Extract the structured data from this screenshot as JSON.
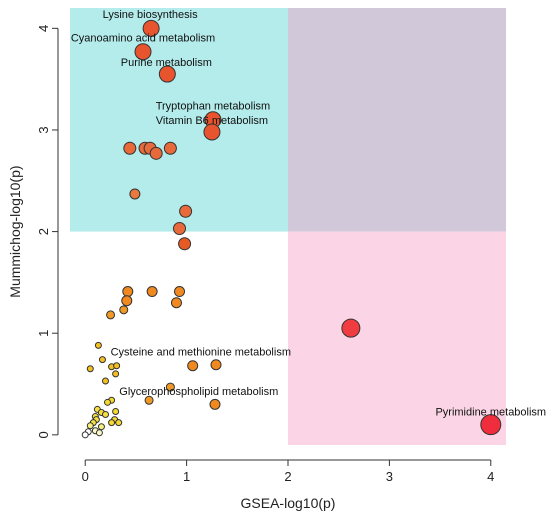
{
  "chart_data": {
    "type": "scatter",
    "title": "",
    "xlabel": "GSEA-log10(p)",
    "ylabel": "Mummichog-log10(p)",
    "xlim": [
      -0.15,
      4.15
    ],
    "ylim": [
      -0.1,
      4.2
    ],
    "xticks": [
      "0",
      "1",
      "2",
      "3",
      "4"
    ],
    "yticks": [
      "0",
      "1",
      "2",
      "3",
      "4"
    ],
    "grid": false,
    "regions": [
      {
        "x": [
          -0.15,
          2
        ],
        "y": [
          2,
          4.2
        ],
        "color": "#b4ebeb"
      },
      {
        "x": [
          2,
          4.15
        ],
        "y": [
          2,
          4.2
        ],
        "color": "#d1c9d9"
      },
      {
        "x": [
          2,
          4.15
        ],
        "y": [
          -0.15,
          2
        ],
        "color": "#fbd5e5"
      }
    ],
    "points": [
      {
        "x": 0.65,
        "y": 4.0,
        "size": 8,
        "color": "#e8542e"
      },
      {
        "x": 0.57,
        "y": 3.77,
        "size": 8,
        "color": "#e8542e"
      },
      {
        "x": 0.81,
        "y": 3.55,
        "size": 8,
        "color": "#e8542e"
      },
      {
        "x": 1.26,
        "y": 3.1,
        "size": 8,
        "color": "#e8542e"
      },
      {
        "x": 1.25,
        "y": 2.98,
        "size": 8,
        "color": "#e8542e"
      },
      {
        "x": 0.44,
        "y": 2.82,
        "size": 6,
        "color": "#e86a3a"
      },
      {
        "x": 0.59,
        "y": 2.82,
        "size": 6,
        "color": "#e86a3a"
      },
      {
        "x": 0.64,
        "y": 2.82,
        "size": 6,
        "color": "#e86a3a"
      },
      {
        "x": 0.7,
        "y": 2.77,
        "size": 6,
        "color": "#e86a3a"
      },
      {
        "x": 0.84,
        "y": 2.82,
        "size": 6,
        "color": "#e86a3a"
      },
      {
        "x": 0.99,
        "y": 2.2,
        "size": 6,
        "color": "#e86a3a"
      },
      {
        "x": 0.49,
        "y": 2.37,
        "size": 5,
        "color": "#e87a40"
      },
      {
        "x": 0.93,
        "y": 2.03,
        "size": 6,
        "color": "#e86a3a"
      },
      {
        "x": 0.98,
        "y": 1.88,
        "size": 6,
        "color": "#e85a25"
      },
      {
        "x": 2.62,
        "y": 1.05,
        "size": 9,
        "color": "#f03c40"
      },
      {
        "x": 4.0,
        "y": 0.1,
        "size": 10,
        "color": "#f02d3c"
      },
      {
        "x": 0.42,
        "y": 1.41,
        "size": 5,
        "color": "#f08a20"
      },
      {
        "x": 0.66,
        "y": 1.41,
        "size": 5,
        "color": "#f08a20"
      },
      {
        "x": 0.93,
        "y": 1.41,
        "size": 5,
        "color": "#f08a20"
      },
      {
        "x": 0.41,
        "y": 1.32,
        "size": 5,
        "color": "#f08a20"
      },
      {
        "x": 0.9,
        "y": 1.3,
        "size": 5,
        "color": "#f08a20"
      },
      {
        "x": 0.38,
        "y": 1.23,
        "size": 4,
        "color": "#f09a25"
      },
      {
        "x": 0.25,
        "y": 1.18,
        "size": 4,
        "color": "#f09a25"
      },
      {
        "x": 1.06,
        "y": 0.68,
        "size": 5,
        "color": "#f08a20"
      },
      {
        "x": 1.29,
        "y": 0.69,
        "size": 5,
        "color": "#f08a20"
      },
      {
        "x": 0.84,
        "y": 0.47,
        "size": 4,
        "color": "#f09a25"
      },
      {
        "x": 0.63,
        "y": 0.34,
        "size": 4,
        "color": "#f09a25"
      },
      {
        "x": 1.28,
        "y": 0.3,
        "size": 5,
        "color": "#f08a20"
      },
      {
        "x": 0.13,
        "y": 0.88,
        "size": 3,
        "color": "#f4c020"
      },
      {
        "x": 0.17,
        "y": 0.74,
        "size": 3,
        "color": "#f4c020"
      },
      {
        "x": 0.05,
        "y": 0.65,
        "size": 3,
        "color": "#f4c020"
      },
      {
        "x": 0.26,
        "y": 0.67,
        "size": 3,
        "color": "#f4c020"
      },
      {
        "x": 0.31,
        "y": 0.68,
        "size": 3,
        "color": "#f4c020"
      },
      {
        "x": 0.3,
        "y": 0.6,
        "size": 3,
        "color": "#f4c020"
      },
      {
        "x": 0.2,
        "y": 0.53,
        "size": 3,
        "color": "#f4c020"
      },
      {
        "x": 0.26,
        "y": 0.34,
        "size": 3,
        "color": "#f5d830"
      },
      {
        "x": 0.22,
        "y": 0.32,
        "size": 3,
        "color": "#f5d830"
      },
      {
        "x": 0.12,
        "y": 0.25,
        "size": 3,
        "color": "#f5e040"
      },
      {
        "x": 0.16,
        "y": 0.22,
        "size": 3,
        "color": "#f5e040"
      },
      {
        "x": 0.2,
        "y": 0.2,
        "size": 3,
        "color": "#f5e040"
      },
      {
        "x": 0.3,
        "y": 0.23,
        "size": 3,
        "color": "#f5d830"
      },
      {
        "x": 0.1,
        "y": 0.18,
        "size": 3,
        "color": "#f5e040"
      },
      {
        "x": 0.11,
        "y": 0.15,
        "size": 3,
        "color": "#f5e040"
      },
      {
        "x": 0.29,
        "y": 0.15,
        "size": 3,
        "color": "#f5d830"
      },
      {
        "x": 0.08,
        "y": 0.12,
        "size": 3,
        "color": "#f5e040"
      },
      {
        "x": 0.26,
        "y": 0.12,
        "size": 3,
        "color": "#f5d830"
      },
      {
        "x": 0.33,
        "y": 0.12,
        "size": 3,
        "color": "#f5d830"
      },
      {
        "x": 0.05,
        "y": 0.09,
        "size": 3,
        "color": "#f5ef80"
      },
      {
        "x": 0.16,
        "y": 0.08,
        "size": 3,
        "color": "#f5ef80"
      },
      {
        "x": 0.1,
        "y": 0.04,
        "size": 3,
        "color": "#faf7c8"
      },
      {
        "x": 0.03,
        "y": 0.03,
        "size": 3,
        "color": "#ffffff"
      },
      {
        "x": 0.14,
        "y": 0.02,
        "size": 3,
        "color": "#faf7c8"
      },
      {
        "x": 0.0,
        "y": 0.0,
        "size": 3,
        "color": "#ffffff"
      }
    ],
    "annotations": [
      {
        "text": "Lysine biosynthesis",
        "x": 0.64,
        "y": 4.1,
        "anchor": "middle"
      },
      {
        "text": "Cyanoamino acid metabolism",
        "x": 0.57,
        "y": 3.87,
        "anchor": "middle"
      },
      {
        "text": "Purine metabolism",
        "x": 0.8,
        "y": 3.63,
        "anchor": "middle"
      },
      {
        "text": "Tryptophan metabolism",
        "x": 1.26,
        "y": 3.2,
        "anchor": "middle"
      },
      {
        "text": "Vitamin B6 metabolism",
        "x": 1.25,
        "y": 3.06,
        "anchor": "middle"
      },
      {
        "text": "Cysteine and methionine metabolism",
        "x": 1.14,
        "y": 0.78,
        "anchor": "middle"
      },
      {
        "text": "Glycerophospholipid metabolism",
        "x": 1.12,
        "y": 0.39,
        "anchor": "middle"
      },
      {
        "text": "Pyrimidine metabolism",
        "x": 4.0,
        "y": 0.19,
        "anchor": "middle"
      }
    ]
  }
}
